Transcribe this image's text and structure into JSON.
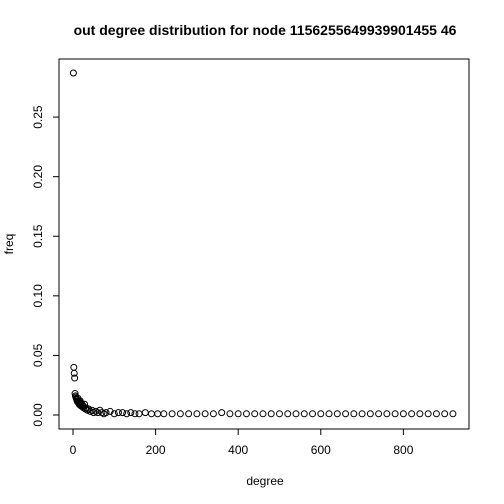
{
  "chart_data": {
    "type": "scatter",
    "title": "out degree distribution for node 1156255649939901455 46",
    "xlabel": "degree",
    "ylabel": "freq",
    "xlim": [
      0,
      925
    ],
    "ylim": [
      0,
      0.287
    ],
    "x_ticks": [
      "0",
      "200",
      "400",
      "600",
      "800"
    ],
    "y_ticks": [
      "0.00",
      "0.05",
      "0.10",
      "0.15",
      "0.20",
      "0.25"
    ],
    "grid": false,
    "marker": "open-circle",
    "marker_color": "#000000",
    "series": [
      {
        "x": [
          1,
          2,
          3,
          4,
          5,
          6,
          7,
          8,
          9,
          10,
          11,
          12,
          13,
          14,
          15,
          16,
          17,
          18,
          19,
          20,
          22,
          24,
          26,
          28,
          30,
          32,
          35,
          38,
          42,
          46,
          50,
          55,
          60,
          65,
          70,
          75,
          80,
          90,
          100,
          110,
          120,
          130,
          140,
          150,
          160,
          175,
          190,
          205,
          220,
          240,
          260,
          280,
          300,
          320,
          340,
          360,
          380,
          400,
          420,
          440,
          460,
          480,
          500,
          520,
          540,
          560,
          580,
          600,
          620,
          640,
          660,
          680,
          700,
          720,
          740,
          760,
          780,
          800,
          820,
          840,
          860,
          880,
          900,
          920
        ],
        "y": [
          0.287,
          0.04,
          0.035,
          0.031,
          0.018,
          0.016,
          0.015,
          0.014,
          0.013,
          0.012,
          0.011,
          0.014,
          0.012,
          0.01,
          0.009,
          0.011,
          0.012,
          0.008,
          0.009,
          0.01,
          0.007,
          0.008,
          0.006,
          0.009,
          0.005,
          0.006,
          0.004,
          0.005,
          0.003,
          0.004,
          0.002,
          0.003,
          0.002,
          0.004,
          0.002,
          0.001,
          0.002,
          0.003,
          0.001,
          0.002,
          0.002,
          0.001,
          0.002,
          0.001,
          0.001,
          0.002,
          0.001,
          0.001,
          0.001,
          0.001,
          0.001,
          0.001,
          0.001,
          0.001,
          0.001,
          0.002,
          0.001,
          0.001,
          0.001,
          0.001,
          0.001,
          0.001,
          0.001,
          0.001,
          0.001,
          0.001,
          0.001,
          0.001,
          0.001,
          0.001,
          0.001,
          0.001,
          0.001,
          0.001,
          0.001,
          0.001,
          0.001,
          0.001,
          0.001,
          0.001,
          0.001,
          0.001,
          0.001,
          0.001
        ]
      }
    ]
  }
}
